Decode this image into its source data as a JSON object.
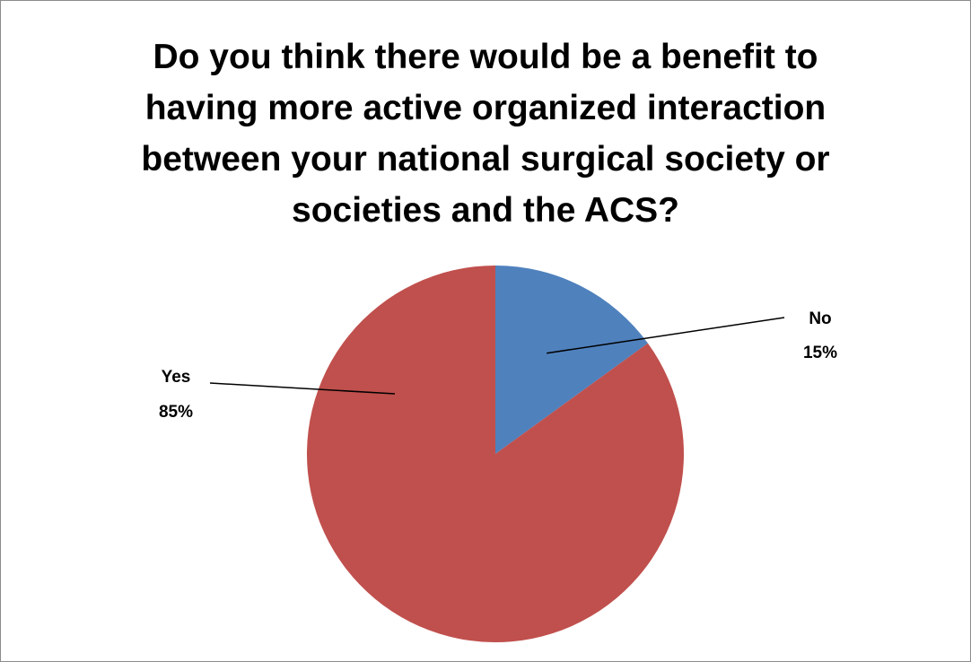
{
  "chart_data": {
    "type": "pie",
    "title_lines": [
      "Do you think there would be a benefit to",
      "having more active organized interaction",
      "between your national surgical society or",
      "societies and the ACS?"
    ],
    "slices": [
      {
        "label": "No",
        "value": 15,
        "value_label": "15%",
        "color": "#4f81bd"
      },
      {
        "label": "Yes",
        "value": 85,
        "value_label": "85%",
        "color": "#c0504d"
      }
    ],
    "start_angle_deg": 0,
    "direction": "clockwise",
    "legend": "none"
  }
}
